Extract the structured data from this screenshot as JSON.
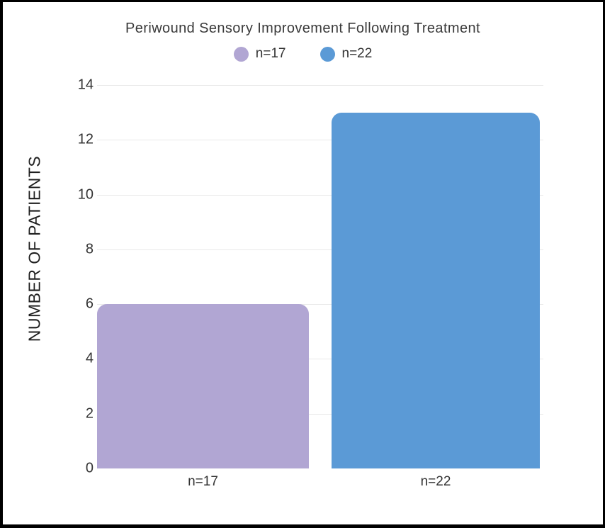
{
  "chart_data": {
    "type": "bar",
    "title": "Periwound Sensory Improvement Following Treatment",
    "categories": [
      "n=17",
      "n=22"
    ],
    "values": [
      6,
      13
    ],
    "bar_colors": [
      "#b1a6d3",
      "#5b9ad6"
    ],
    "legend": [
      {
        "label": "n=17",
        "color": "#b1a6d3"
      },
      {
        "label": "n=22",
        "color": "#5b9ad6"
      }
    ],
    "legend_position": "top",
    "xlabel": "",
    "ylabel": "NUMBER OF PATIENTS",
    "ylim": [
      0,
      14
    ],
    "yticks": [
      0,
      2,
      4,
      6,
      8,
      10,
      12,
      14
    ],
    "grid": true,
    "background_color": "#ffffff",
    "gridline_color": "#e9e9e9",
    "title_color": "#3a3a3a"
  }
}
